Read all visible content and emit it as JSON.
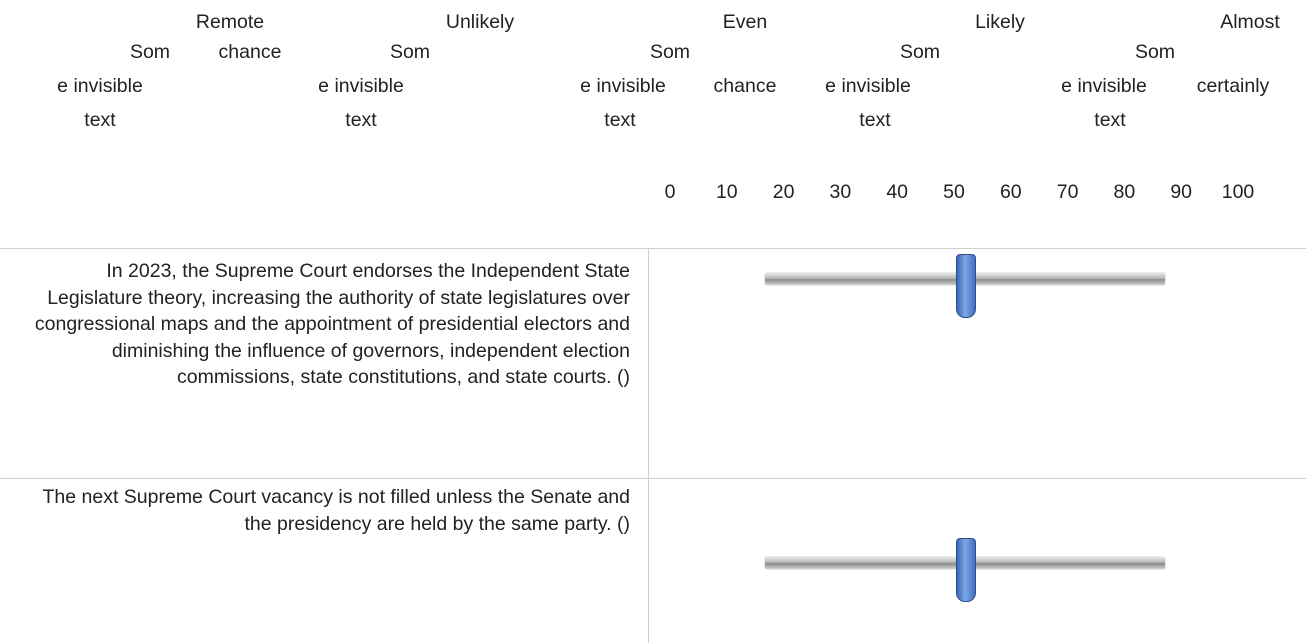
{
  "header": {
    "columns": [
      {
        "label": [
          "Remote",
          "chance"
        ],
        "hidden": [
          "Som",
          "e invisible",
          "text"
        ]
      },
      {
        "label": [
          "Unlikely"
        ],
        "hidden": [
          "Som",
          "e invisible",
          "text"
        ]
      },
      {
        "label": [
          "Even",
          "chance"
        ],
        "hidden": [
          "Som",
          "e invisible",
          "text"
        ]
      },
      {
        "label": [
          "Likely"
        ],
        "hidden": [
          "Som",
          "e invisible",
          "text"
        ]
      },
      {
        "label": [
          "Almost",
          "certainly"
        ],
        "hidden": [
          "Som",
          "e invisible",
          "text"
        ]
      }
    ]
  },
  "scale": {
    "ticks": [
      0,
      10,
      20,
      30,
      40,
      50,
      60,
      70,
      80,
      90,
      100
    ],
    "range": [
      0,
      100
    ]
  },
  "questions": [
    {
      "text": "In 2023, the Supreme Court endorses the Independent State Legislature theory, increasing the authority of state legislatures over congressional maps and the appointment of presidential electors and diminishing the influence of governors, independent election commissions, state constitutions, and state courts. ()",
      "value": 50
    },
    {
      "text": "The next Supreme Court vacancy is not filled unless the Senate and the presidency are held by the same party. ()",
      "value": 50
    }
  ]
}
